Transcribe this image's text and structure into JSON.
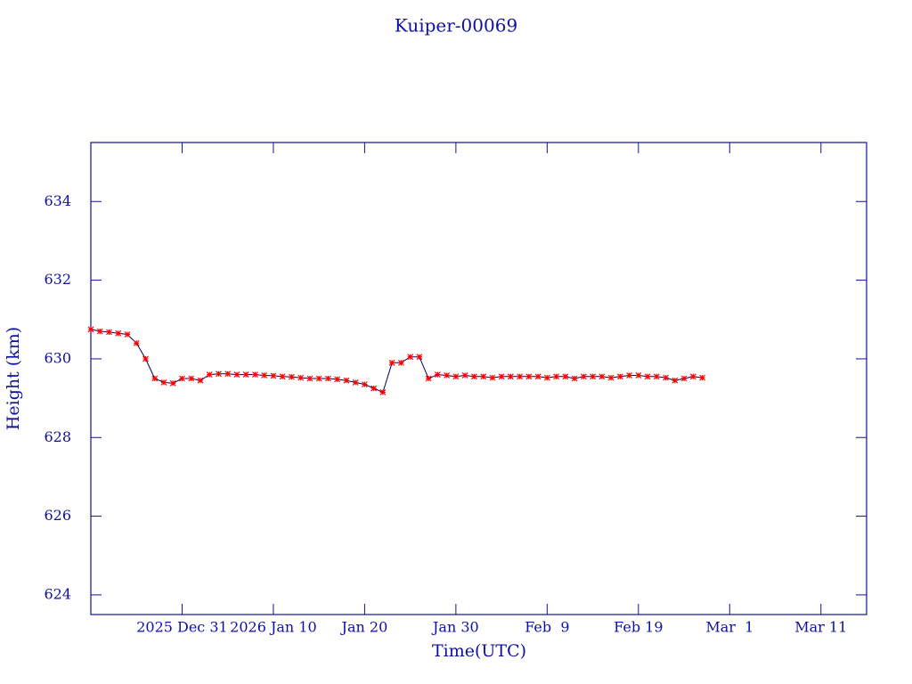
{
  "chart_data": {
    "type": "line",
    "title": "Kuiper-00069",
    "x_label": "Time(UTC)",
    "y_label": "Height (km)",
    "xlim": [
      "2025-12-21",
      "2026-03-16"
    ],
    "xticks": [
      {
        "value": "2025-12-31",
        "label": "2025 Dec 31"
      },
      {
        "value": "2026-01-10",
        "label": "2026 Jan 10"
      },
      {
        "value": "2026-01-20",
        "label": "Jan 20"
      },
      {
        "value": "2026-01-30",
        "label": "Jan 30"
      },
      {
        "value": "2026-02-09",
        "label": "Feb  9"
      },
      {
        "value": "2026-02-19",
        "label": "Feb 19"
      },
      {
        "value": "2026-03-01",
        "label": "Mar  1"
      },
      {
        "value": "2026-03-11",
        "label": "Mar 11"
      }
    ],
    "ylim": [
      623.5,
      635.5
    ],
    "yticks": [
      624,
      626,
      628,
      630,
      632,
      634
    ],
    "grid": false,
    "axis_color": "#1010a0",
    "line_color": "#000060",
    "marker_color": "#ff0000",
    "x": [
      "2025-12-21",
      "2025-12-22",
      "2025-12-23",
      "2025-12-24",
      "2025-12-25",
      "2025-12-26",
      "2025-12-27",
      "2025-12-28",
      "2025-12-29",
      "2025-12-30",
      "2025-12-31",
      "2026-01-01",
      "2026-01-02",
      "2026-01-03",
      "2026-01-04",
      "2026-01-05",
      "2026-01-06",
      "2026-01-07",
      "2026-01-08",
      "2026-01-09",
      "2026-01-10",
      "2026-01-11",
      "2026-01-12",
      "2026-01-13",
      "2026-01-14",
      "2026-01-15",
      "2026-01-16",
      "2026-01-17",
      "2026-01-18",
      "2026-01-19",
      "2026-01-20",
      "2026-01-21",
      "2026-01-22",
      "2026-01-23",
      "2026-01-24",
      "2026-01-25",
      "2026-01-26",
      "2026-01-27",
      "2026-01-28",
      "2026-01-29",
      "2026-01-30",
      "2026-01-31",
      "2026-02-01",
      "2026-02-02",
      "2026-02-03",
      "2026-02-04",
      "2026-02-05",
      "2026-02-06",
      "2026-02-07",
      "2026-02-08",
      "2026-02-09",
      "2026-02-10",
      "2026-02-11",
      "2026-02-12",
      "2026-02-13",
      "2026-02-14",
      "2026-02-15",
      "2026-02-16",
      "2026-02-17",
      "2026-02-18",
      "2026-02-19",
      "2026-02-20",
      "2026-02-21",
      "2026-02-22",
      "2026-02-23",
      "2026-02-24",
      "2026-02-25",
      "2026-02-26"
    ],
    "values": [
      630.75,
      630.7,
      630.68,
      630.65,
      630.62,
      630.4,
      630.0,
      629.5,
      629.4,
      629.38,
      629.5,
      629.5,
      629.45,
      629.6,
      629.62,
      629.62,
      629.6,
      629.6,
      629.6,
      629.58,
      629.57,
      629.55,
      629.54,
      629.52,
      629.5,
      629.5,
      629.5,
      629.48,
      629.45,
      629.4,
      629.35,
      629.25,
      629.15,
      629.9,
      629.9,
      630.05,
      630.05,
      629.5,
      629.6,
      629.58,
      629.55,
      629.58,
      629.55,
      629.55,
      629.52,
      629.55,
      629.55,
      629.55,
      629.55,
      629.55,
      629.52,
      629.55,
      629.55,
      629.5,
      629.55,
      629.55,
      629.55,
      629.52,
      629.55,
      629.58,
      629.58,
      629.55,
      629.55,
      629.52,
      629.45,
      629.5,
      629.55,
      629.52
    ]
  }
}
